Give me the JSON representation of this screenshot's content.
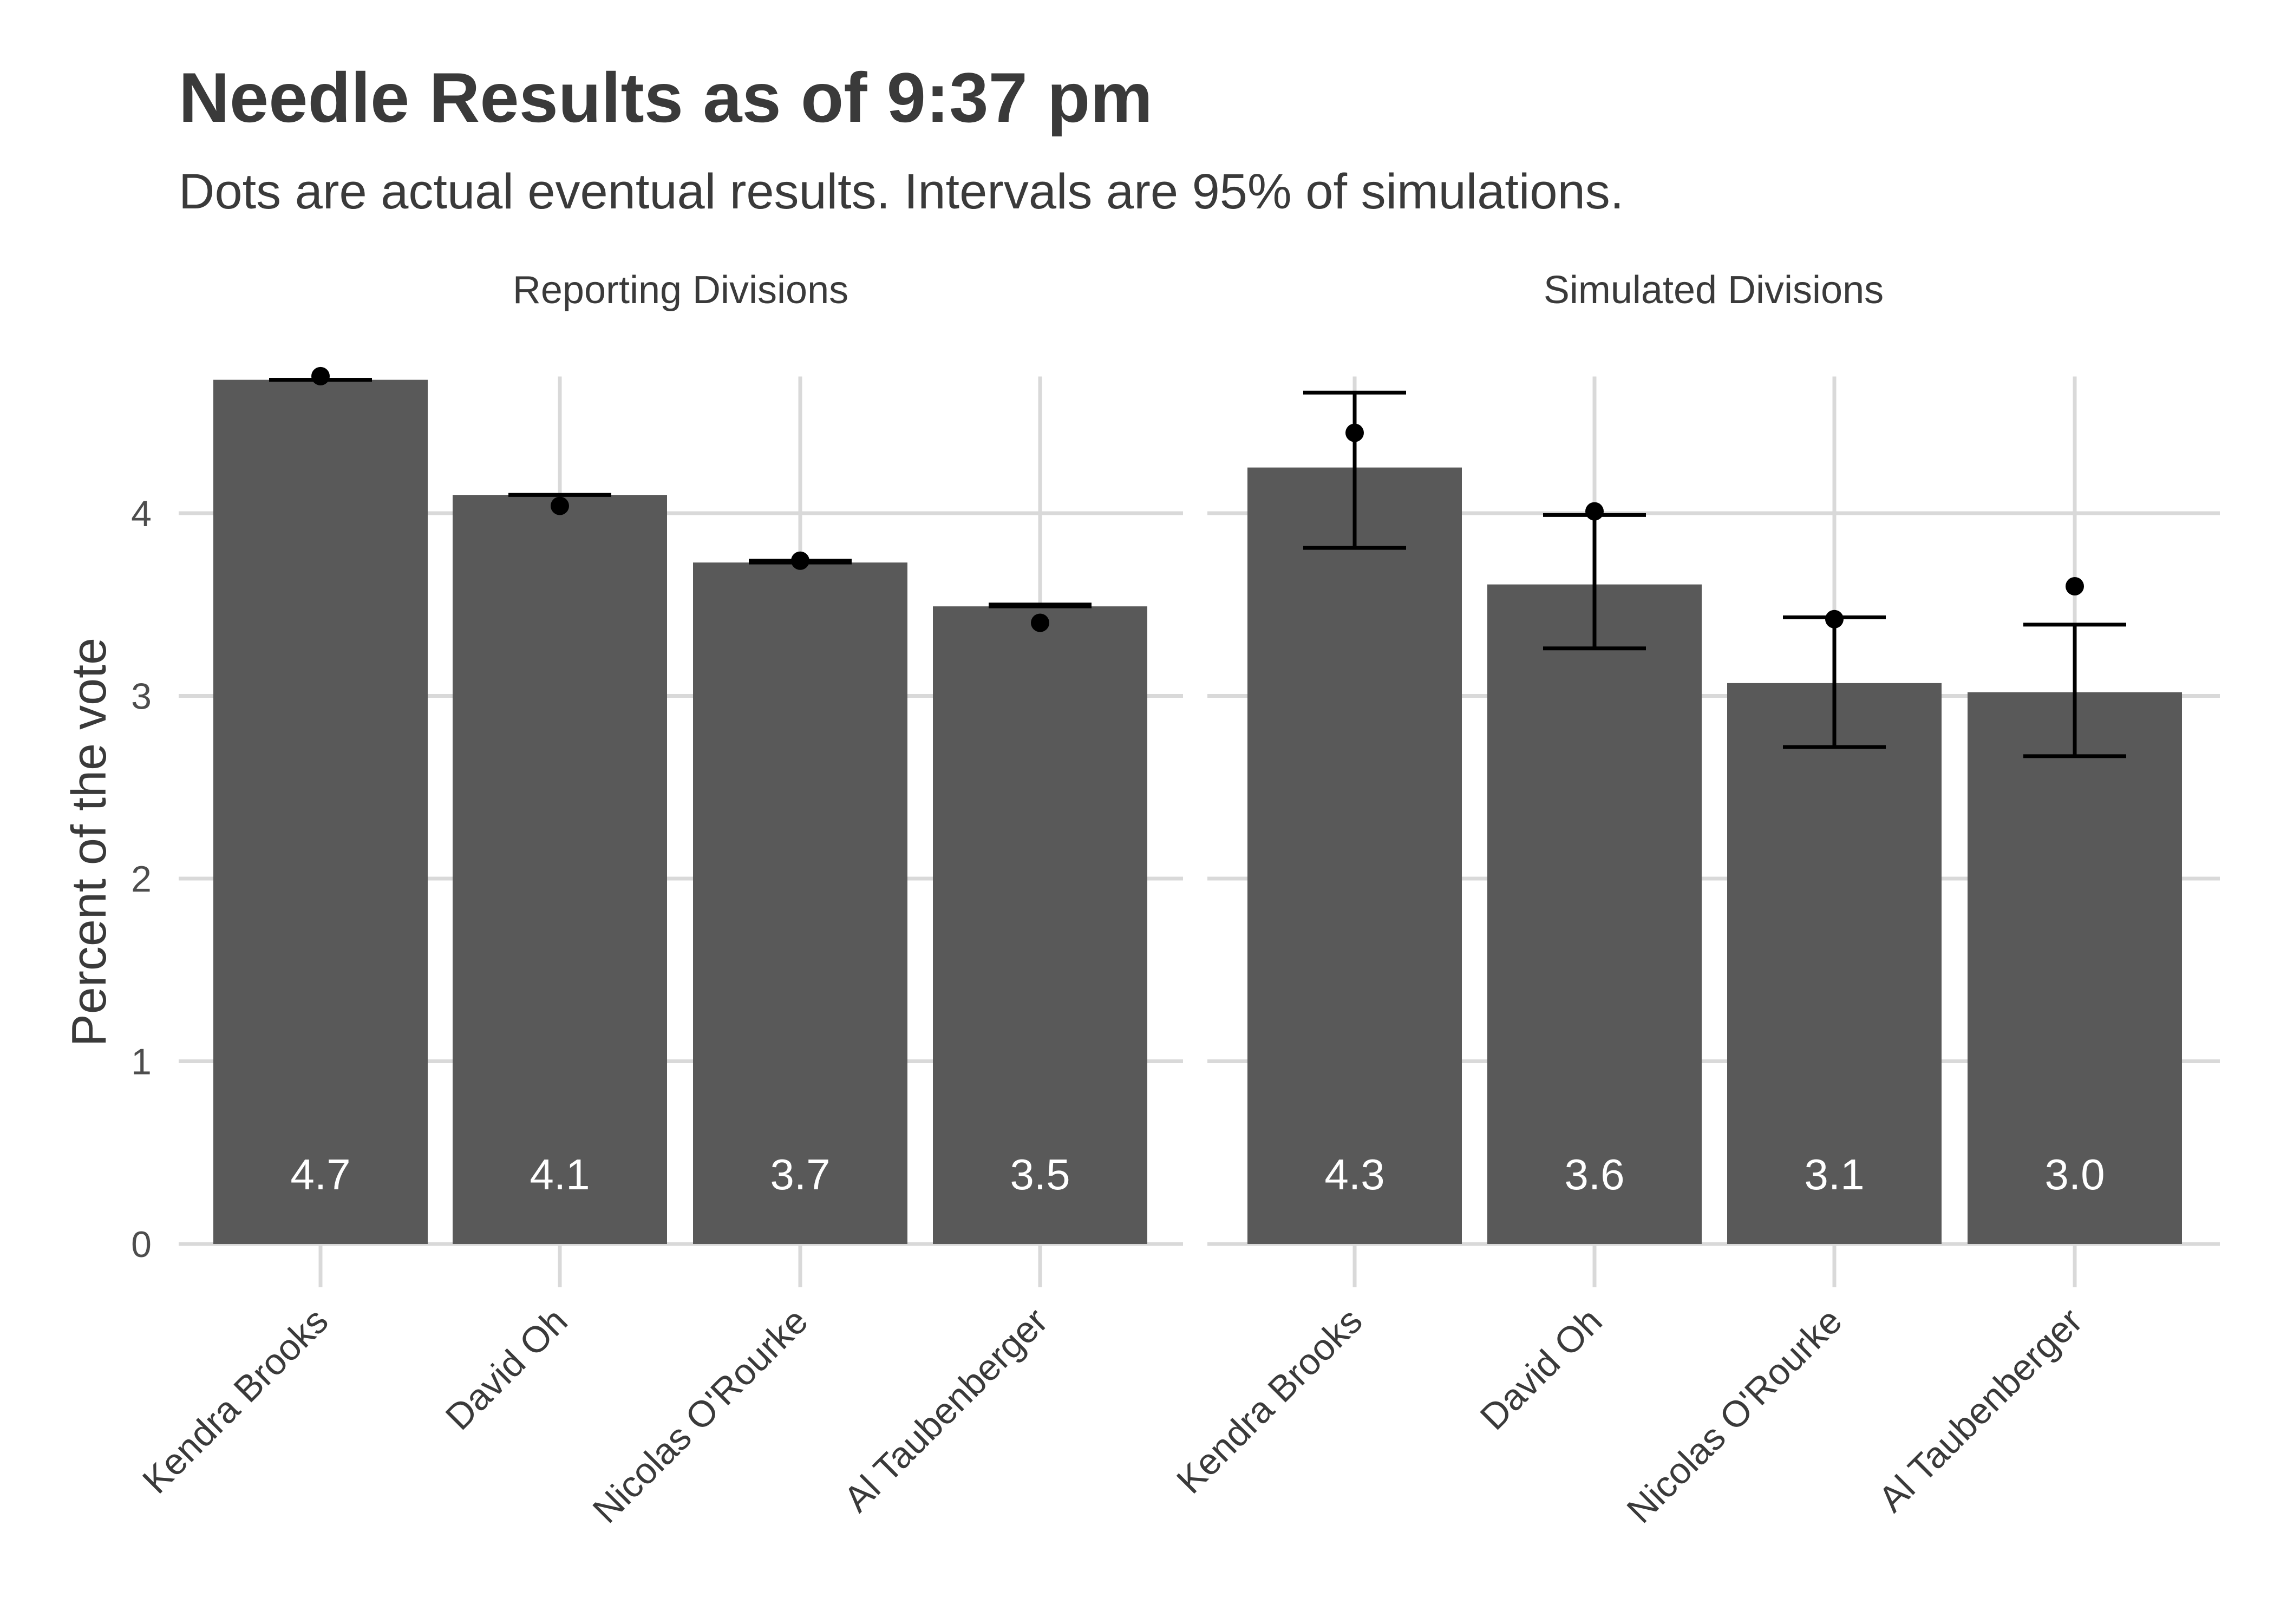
{
  "title": "Needle Results as of 9:37 pm",
  "subtitle": "Dots are actual eventual results. Intervals are 95% of simulations.",
  "chart_data": {
    "type": "bar",
    "ylabel": "Percent of the vote",
    "ylim": [
      0,
      5
    ],
    "yticks": [
      "0",
      "1",
      "2",
      "3",
      "4"
    ],
    "grid": true,
    "categories": [
      "Kendra Brooks",
      "David Oh",
      "Nicolas O'Rourke",
      "Al Taubenberger"
    ],
    "panels": [
      {
        "name": "Reporting Divisions",
        "values": [
          4.73,
          4.1,
          3.73,
          3.49
        ],
        "labels": [
          "4.7",
          "4.1",
          "3.7",
          "3.5"
        ],
        "interval_low": [
          4.73,
          4.1,
          3.73,
          3.49
        ],
        "interval_high": [
          4.73,
          4.1,
          3.74,
          3.5
        ],
        "actual": [
          4.75,
          4.04,
          3.74,
          3.4
        ]
      },
      {
        "name": "Simulated Divisions",
        "values": [
          4.25,
          3.61,
          3.07,
          3.02
        ],
        "labels": [
          "4.3",
          "3.6",
          "3.1",
          "3.0"
        ],
        "interval_low": [
          3.81,
          3.26,
          2.72,
          2.67
        ],
        "interval_high": [
          4.66,
          3.99,
          3.43,
          3.39
        ],
        "actual": [
          4.44,
          4.01,
          3.42,
          3.6
        ]
      }
    ]
  }
}
